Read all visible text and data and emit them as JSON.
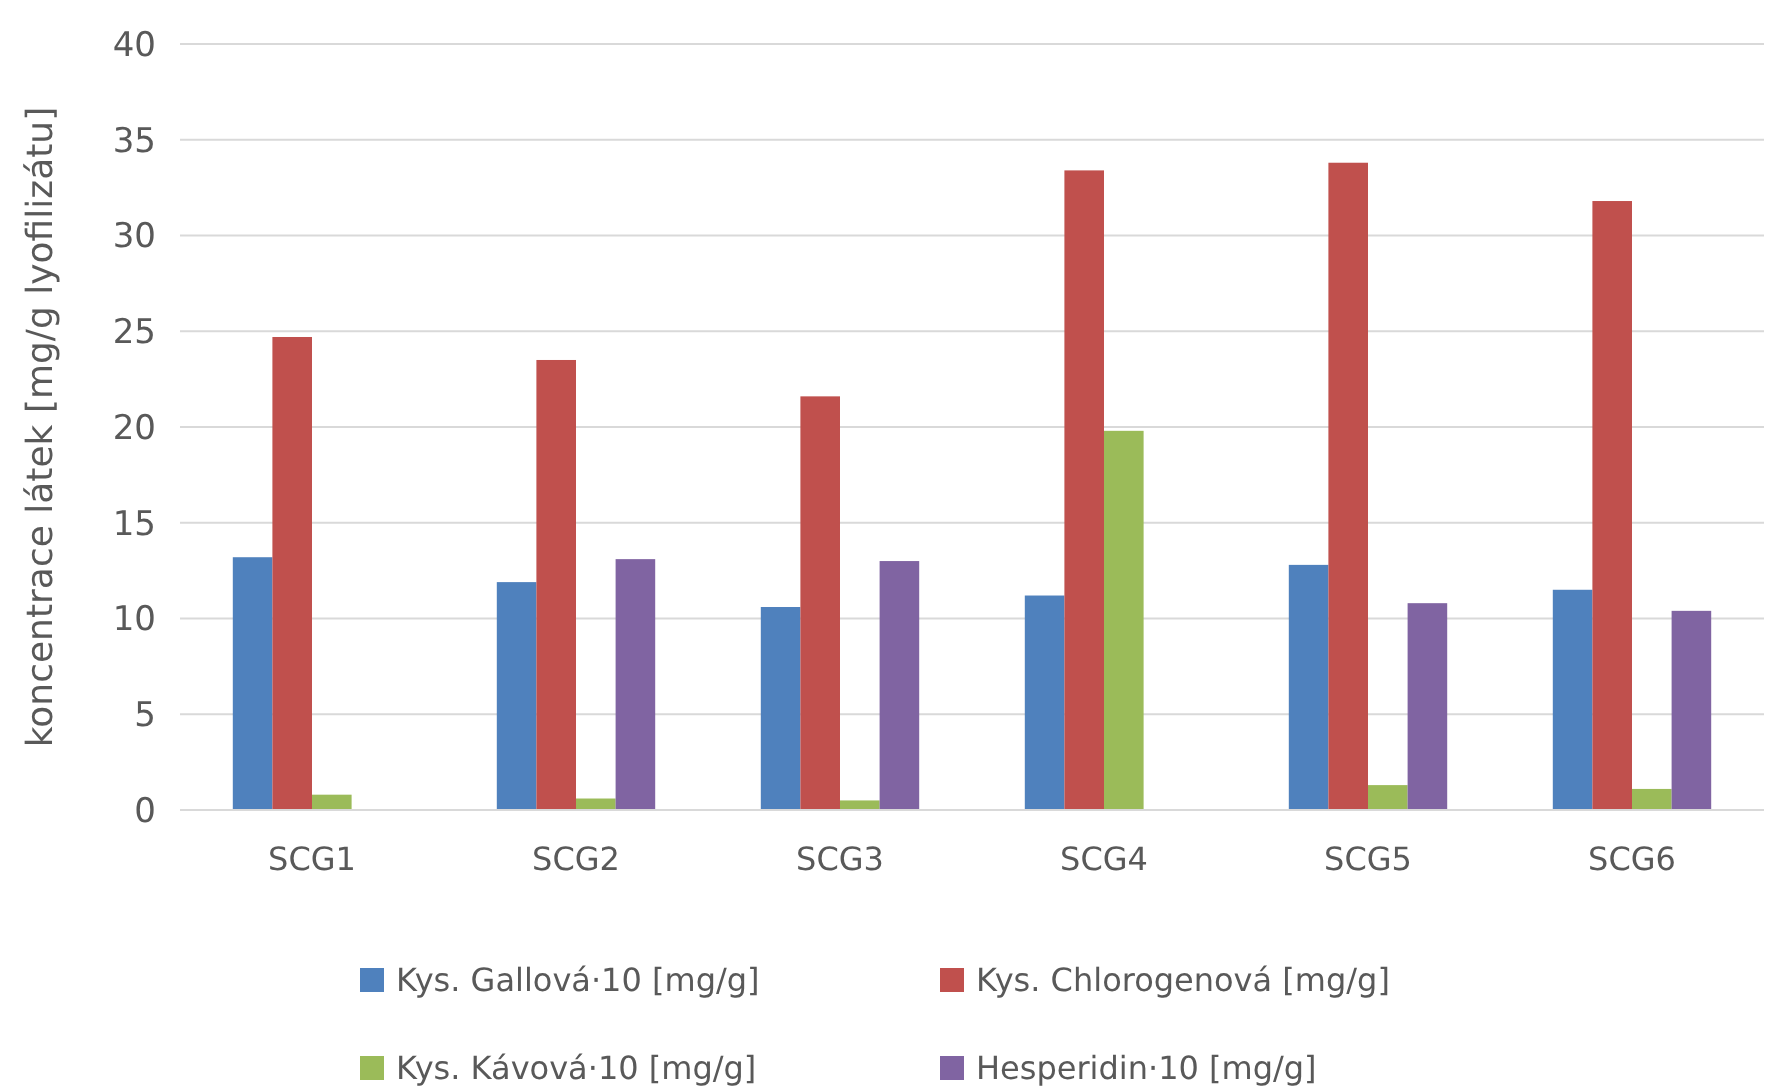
{
  "chart_data": {
    "type": "bar",
    "ylabel": "koncentrace látek [mg/g lyofilizátu]",
    "categories": [
      "SCG1",
      "SCG2",
      "SCG3",
      "SCG4",
      "SCG5",
      "SCG6"
    ],
    "series": [
      {
        "name": "Kys. Gallová·10 [mg/g]",
        "color": "#4f81bd",
        "values": [
          13.2,
          11.9,
          10.6,
          11.2,
          12.8,
          11.5
        ]
      },
      {
        "name": "Kys. Chlorogenová [mg/g]",
        "color": "#c0504d",
        "values": [
          24.7,
          23.5,
          21.6,
          33.4,
          33.8,
          31.8
        ]
      },
      {
        "name": "Kys. Kávová·10 [mg/g]",
        "color": "#9bbb59",
        "values": [
          0.8,
          0.6,
          0.5,
          19.8,
          1.3,
          1.1
        ]
      },
      {
        "name": "Hesperidin·10 [mg/g]",
        "color": "#8064a2",
        "values": [
          null,
          13.1,
          13.0,
          null,
          10.8,
          10.4
        ]
      }
    ],
    "ylim": [
      0,
      40
    ],
    "yticks": [
      0,
      5,
      10,
      15,
      20,
      25,
      30,
      35,
      40
    ],
    "grid": "y",
    "legend": "bottom"
  }
}
